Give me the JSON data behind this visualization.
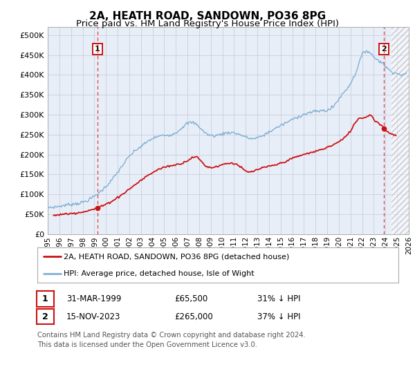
{
  "title": "2A, HEATH ROAD, SANDOWN, PO36 8PG",
  "subtitle": "Price paid vs. HM Land Registry's House Price Index (HPI)",
  "title_fontsize": 11,
  "subtitle_fontsize": 9.5,
  "ylim": [
    0,
    520000
  ],
  "yticks": [
    0,
    50000,
    100000,
    150000,
    200000,
    250000,
    300000,
    350000,
    400000,
    450000,
    500000
  ],
  "ytick_labels": [
    "£0",
    "£50K",
    "£100K",
    "£150K",
    "£200K",
    "£250K",
    "£300K",
    "£350K",
    "£400K",
    "£450K",
    "£500K"
  ],
  "hpi_color": "#7fafd4",
  "price_color": "#cc1111",
  "bg_color": "#e8eef8",
  "grid_color": "#c8d0dc",
  "marker1_date_x": 1999.25,
  "marker1_price": 65500,
  "marker2_date_x": 2023.88,
  "marker2_price": 265000,
  "marker1_label": "1",
  "marker2_label": "2",
  "legend_line1": "2A, HEATH ROAD, SANDOWN, PO36 8PG (detached house)",
  "legend_line2": "HPI: Average price, detached house, Isle of Wight",
  "table_row1": [
    "1",
    "31-MAR-1999",
    "£65,500",
    "31% ↓ HPI"
  ],
  "table_row2": [
    "2",
    "15-NOV-2023",
    "£265,000",
    "37% ↓ HPI"
  ],
  "footnote": "Contains HM Land Registry data © Crown copyright and database right 2024.\nThis data is licensed under the Open Government Licence v3.0.",
  "xmin": 1995,
  "xmax": 2026,
  "xtick_years": [
    1995,
    1996,
    1997,
    1998,
    1999,
    2000,
    2001,
    2002,
    2003,
    2004,
    2005,
    2006,
    2007,
    2008,
    2009,
    2010,
    2011,
    2012,
    2013,
    2014,
    2015,
    2016,
    2017,
    2018,
    2019,
    2020,
    2021,
    2022,
    2023,
    2024,
    2025,
    2026
  ],
  "hatch_start": 2024.5,
  "hpi_anchors_t": [
    1995.0,
    1996.0,
    1997.0,
    1998.0,
    1999.0,
    2000.0,
    2001.0,
    2002.0,
    2003.0,
    2004.0,
    2005.0,
    2006.0,
    2007.0,
    2007.8,
    2008.5,
    2009.5,
    2010.5,
    2011.5,
    2012.5,
    2013.5,
    2014.5,
    2015.5,
    2016.5,
    2017.5,
    2018.5,
    2019.5,
    2020.0,
    2020.8,
    2021.5,
    2022.0,
    2022.3,
    2022.7,
    2023.0,
    2023.5,
    2023.9,
    2024.2,
    2024.6,
    2025.0,
    2025.5
  ],
  "hpi_anchors_v": [
    67000,
    70000,
    75000,
    80000,
    95000,
    120000,
    155000,
    195000,
    220000,
    240000,
    248000,
    255000,
    278000,
    275000,
    255000,
    248000,
    255000,
    250000,
    240000,
    248000,
    265000,
    280000,
    295000,
    305000,
    310000,
    320000,
    340000,
    370000,
    410000,
    450000,
    460000,
    455000,
    445000,
    435000,
    425000,
    415000,
    408000,
    403000,
    400000
  ],
  "red_anchors_t": [
    1995.5,
    1997.0,
    1999.25,
    2001.0,
    2003.0,
    2005.0,
    2007.0,
    2007.8,
    2008.5,
    2009.5,
    2010.5,
    2011.5,
    2012.0,
    2013.0,
    2014.0,
    2015.0,
    2016.0,
    2017.0,
    2018.0,
    2019.0,
    2020.0,
    2021.0,
    2021.8,
    2022.3,
    2022.8,
    2023.0,
    2023.5,
    2023.88,
    2024.3,
    2024.9
  ],
  "red_anchors_v": [
    47000,
    52000,
    65500,
    92000,
    135000,
    168000,
    185000,
    193000,
    173000,
    170000,
    178000,
    170000,
    158000,
    162000,
    170000,
    178000,
    190000,
    200000,
    208000,
    218000,
    232000,
    260000,
    292000,
    293000,
    298000,
    288000,
    278000,
    265000,
    255000,
    248000
  ]
}
